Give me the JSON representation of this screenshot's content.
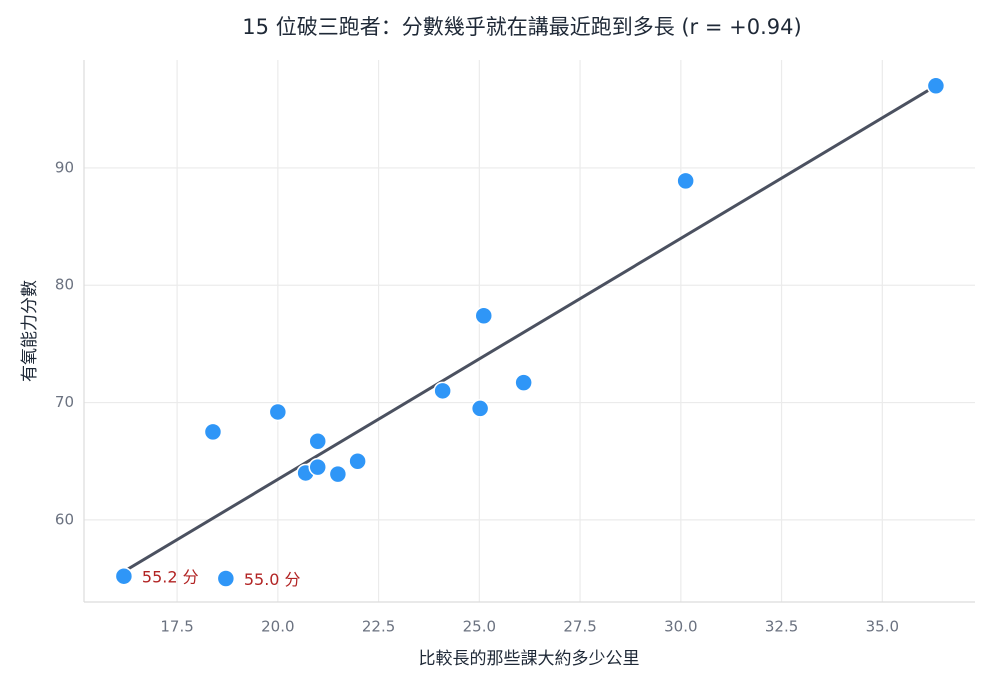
{
  "chart_data": {
    "type": "scatter",
    "title": "15 位破三跑者：分數幾乎就在講最近跑到多長 (r = +0.94)",
    "x_label": "比較長的那些課大約多少公里",
    "y_label": "有氧能力分數",
    "series": [
      {
        "color": "#2f96f7",
        "x": [
          16.18,
          18.71,
          18.39,
          20.0,
          20.99,
          20.69,
          20.99,
          21.49,
          21.98,
          24.09,
          25.02,
          25.11,
          26.1,
          30.12,
          36.33
        ],
        "values": [
          55.2,
          55.0,
          67.5,
          69.2,
          66.7,
          64.0,
          64.5,
          63.9,
          65.0,
          71.0,
          69.5,
          77.4,
          71.7,
          88.9,
          97.0
        ]
      }
    ],
    "trend_line": {
      "color": "#4b5160",
      "x": [
        16.18,
        36.33
      ],
      "y": [
        55.6,
        97.0
      ]
    },
    "annotations": [
      {
        "text": "55.2 分",
        "x": 16.18,
        "y": 55.2,
        "color": "#b22424"
      },
      {
        "text": "55.0 分",
        "x": 18.71,
        "y": 55.0,
        "color": "#b22424"
      }
    ],
    "xlim": [
      15.19,
      37.3
    ],
    "ylim": [
      53.0,
      99.2
    ],
    "xticks": [
      17.5,
      {
        "value": 20,
        "label": "20.0"
      },
      22.5,
      {
        "value": 25,
        "label": "25.0"
      },
      27.5,
      {
        "value": 30,
        "label": "30.0"
      },
      32.5,
      {
        "value": 35,
        "label": "35.0"
      }
    ],
    "yticks": [
      60,
      70,
      80,
      90
    ],
    "grid": true
  }
}
